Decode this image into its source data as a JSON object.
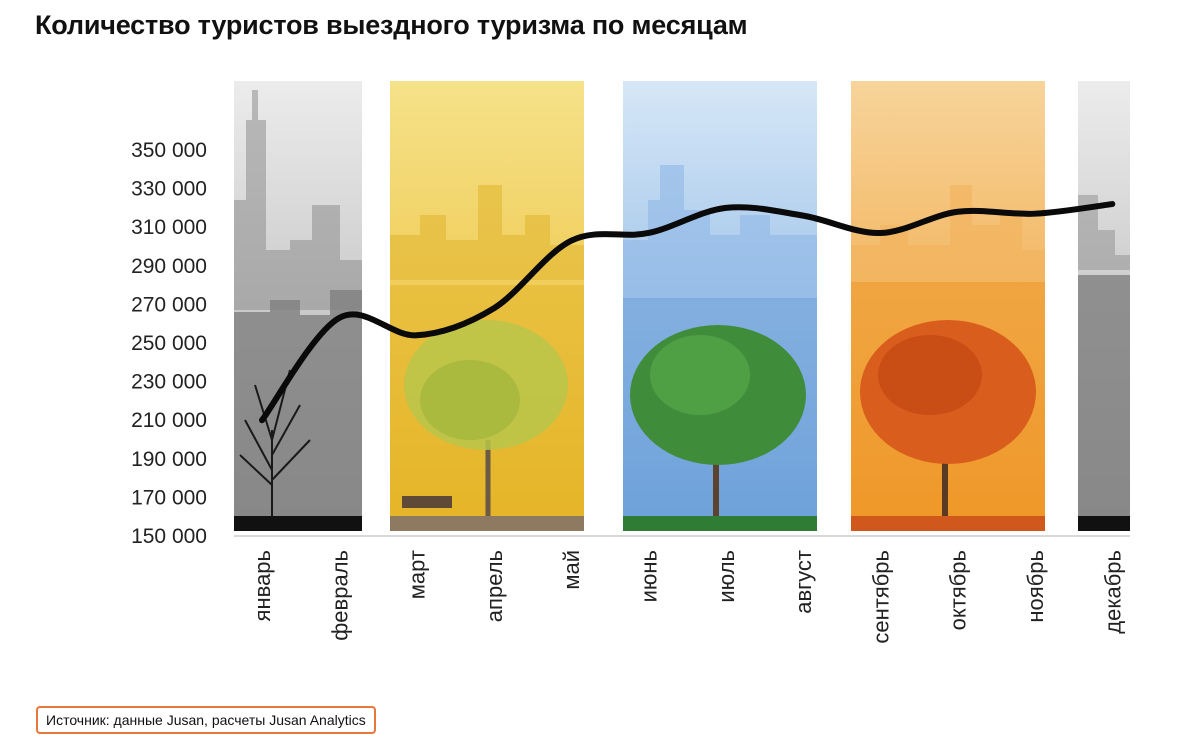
{
  "title": "Количество туристов выездного туризма по месяцам",
  "source": "Источник: данные Jusan, расчеты Jusan Analytics",
  "colors": {
    "line": "#0a0a0a",
    "winter": "#b5b5b5",
    "spring": "#f3c62f",
    "summer": "#7fb1e6",
    "autumn": "#f4a12a"
  },
  "chart_data": {
    "type": "line",
    "categories": [
      "январь",
      "февраль",
      "март",
      "апрель",
      "май",
      "июнь",
      "июль",
      "август",
      "сентябрь",
      "октябрь",
      "ноябрь",
      "декабрь"
    ],
    "values": [
      210000,
      263000,
      254000,
      268000,
      303000,
      307000,
      320000,
      316000,
      307000,
      318000,
      317000,
      322000
    ],
    "yticks": [
      "150 000",
      "170 000",
      "190 000",
      "210 000",
      "230 000",
      "250 000",
      "270 000",
      "290 000",
      "310 000",
      "330 000",
      "350 000"
    ],
    "ylim": [
      150000,
      350000
    ],
    "xlabel": "",
    "ylabel": "",
    "grid": false,
    "background": "season illustrations: winter, spring, summer, autumn, winter"
  }
}
